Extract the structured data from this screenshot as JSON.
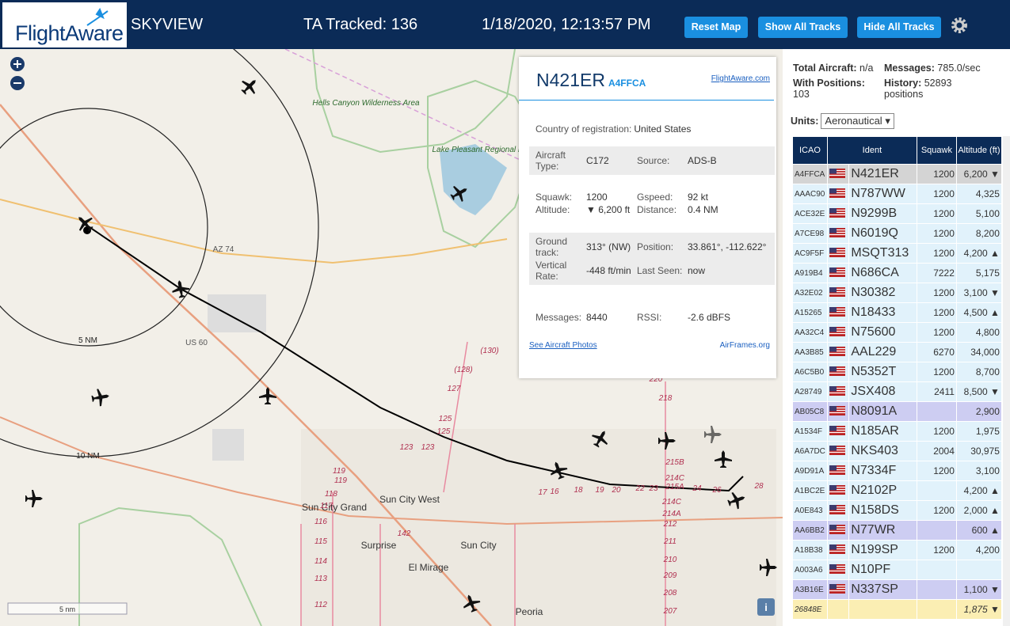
{
  "header": {
    "logo": "FlightAware",
    "title": "SKYVIEW",
    "tracked": "TA Tracked: 136",
    "datetime": "1/18/2020, 12:13:57 PM",
    "buttons": [
      "Reset Map",
      "Show All Tracks",
      "Hide All Tracks"
    ]
  },
  "map": {
    "labels": [
      "Hells Canyon Wilderness Area",
      "Lake Pleasant Regional Park",
      "AZ 74",
      "US 60",
      "5 NM",
      "10 NM",
      "Sun City Grand",
      "Sun City West",
      "Surprise",
      "Sun City",
      "El Mirage",
      "Peoria",
      "5 nm"
    ],
    "roads": [
      "(130)",
      "(128)",
      "127",
      "125",
      "125",
      "123",
      "123",
      "119",
      "119",
      "118",
      "117",
      "116",
      "115",
      "114",
      "113",
      "112",
      "17",
      "16",
      "18",
      "19",
      "20",
      "22",
      "23",
      "24",
      "26",
      "28",
      "218",
      "215B",
      "214C",
      "215A",
      "214C",
      "214A",
      "212",
      "211",
      "210",
      "209",
      "208",
      "207",
      "220",
      "142"
    ]
  },
  "popup": {
    "ident": "N421ER",
    "hex": "A4FFCA",
    "link": "FlightAware.com",
    "sections": [
      [
        [
          "Country of registration:",
          "United States"
        ]
      ],
      [
        [
          "Aircraft Type:",
          "C172"
        ],
        [
          "Source:",
          "ADS-B"
        ]
      ],
      [
        [
          "Squawk:",
          "1200"
        ],
        [
          "Gspeed:",
          "92 kt"
        ],
        [
          "Altitude:",
          "▼ 6,200 ft"
        ],
        [
          "Distance:",
          "0.4 NM"
        ]
      ],
      [
        [
          "Ground track:",
          "313° (NW)"
        ],
        [
          "Position:",
          "33.861°, -112.622°"
        ],
        [
          "Vertical Rate:",
          "-448 ft/min"
        ],
        [
          "Last Seen:",
          "now"
        ]
      ],
      [
        [
          "Messages:",
          "8440"
        ],
        [
          "RSSI:",
          "-2.6 dBFS"
        ]
      ]
    ],
    "photos": "See Aircraft Photos",
    "airframes": "AirFrames.org"
  },
  "stats": {
    "total_label": "Total Aircraft:",
    "total": "n/a",
    "messages_label": "Messages:",
    "messages": "785.0/sec",
    "positions_label": "With Positions:",
    "positions": "103",
    "history_label": "History:",
    "history": "52893 positions",
    "units_label": "Units:",
    "units": "Aeronautical"
  },
  "table": {
    "headers": [
      "ICAO",
      "Ident",
      "Squawk",
      "Altitude (ft)"
    ],
    "rows": [
      [
        "A4FFCA",
        "N421ER",
        "1200",
        "6,200 ▼"
      ],
      [
        "AAAC90",
        "N787WW",
        "1200",
        "4,325"
      ],
      [
        "ACE32E",
        "N9299B",
        "1200",
        "5,100"
      ],
      [
        "A7CE98",
        "N6019Q",
        "1200",
        "8,200"
      ],
      [
        "AC9F5F",
        "MSQT313",
        "1200",
        "4,200 ▲"
      ],
      [
        "A919B4",
        "N686CA",
        "7222",
        "5,175"
      ],
      [
        "A32E02",
        "N30382",
        "1200",
        "3,100 ▼"
      ],
      [
        "A15265",
        "N18433",
        "1200",
        "4,500 ▲"
      ],
      [
        "AA32C4",
        "N75600",
        "1200",
        "4,800"
      ],
      [
        "AA3B85",
        "AAL229",
        "6270",
        "34,000"
      ],
      [
        "A6C5B0",
        "N5352T",
        "1200",
        "8,700"
      ],
      [
        "A28749",
        "JSX408",
        "2411",
        "8,500 ▼"
      ],
      [
        "AB05C8",
        "N8091A",
        null,
        "2,900"
      ],
      [
        "A1534F",
        "N185AR",
        "1200",
        "1,975"
      ],
      [
        "A6A7DC",
        "NKS403",
        "2004",
        "30,975"
      ],
      [
        "A9D91A",
        "N7334F",
        "1200",
        "3,100"
      ],
      [
        "A1BC2E",
        "N2102P",
        null,
        "4,200 ▲"
      ],
      [
        "A0E843",
        "N158DS",
        "1200",
        "2,000 ▲"
      ],
      [
        "AA6BB2",
        "N77WR",
        null,
        "600 ▲"
      ],
      [
        "A18B38",
        "N199SP",
        "1200",
        "4,200"
      ],
      [
        "A003A6",
        "N10PF",
        null,
        null
      ],
      [
        "A3B16E",
        "N337SP",
        null,
        "1,100 ▼"
      ],
      [
        "26848E",
        null,
        null,
        "1,875 ▼"
      ]
    ]
  }
}
